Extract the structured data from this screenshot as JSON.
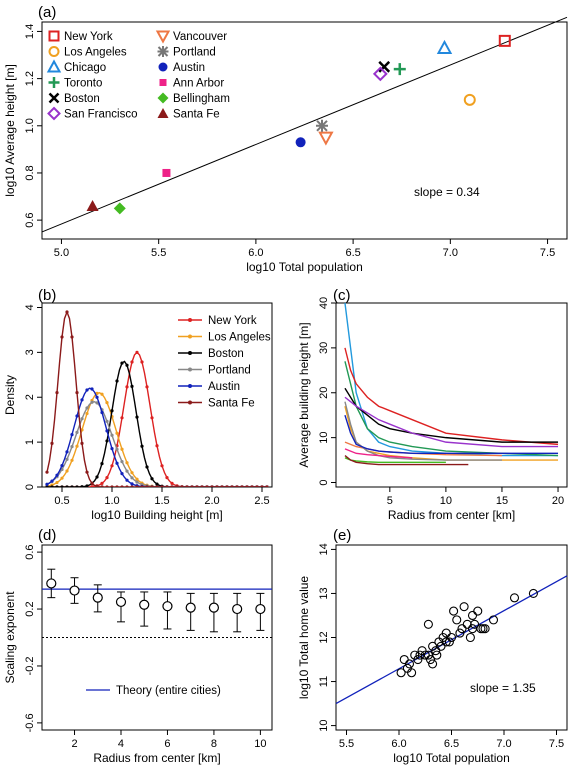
{
  "chart_data": [
    {
      "panel": "(a)",
      "type": "scatter",
      "xlabel": "log10 Total population",
      "ylabel": "log10 Average height [m]",
      "xlim": [
        4.9,
        7.6
      ],
      "ylim": [
        0.52,
        1.44
      ],
      "xticks": [
        "5.0",
        "5.5",
        "6.0",
        "6.5",
        "7.0",
        "7.5"
      ],
      "yticks": [
        "0.6",
        "0.8",
        "1.0",
        "1.2",
        "1.4"
      ],
      "annotation": "slope = 0.34",
      "fit_line": {
        "x": [
          4.9,
          7.6
        ],
        "y": [
          0.55,
          1.46
        ]
      },
      "legend_placement": "top-left",
      "series": [
        {
          "name": "New York",
          "marker": "square-open",
          "color": "#dd2222",
          "x": 7.28,
          "y": 1.36
        },
        {
          "name": "Los Angeles",
          "marker": "circle-open",
          "color": "#f0a020",
          "x": 7.1,
          "y": 1.11
        },
        {
          "name": "Chicago",
          "marker": "triangle-open",
          "color": "#2288dd",
          "x": 6.97,
          "y": 1.33
        },
        {
          "name": "Toronto",
          "marker": "plus",
          "color": "#229955",
          "x": 6.74,
          "y": 1.24
        },
        {
          "name": "Boston",
          "marker": "cross",
          "color": "#000000",
          "x": 6.66,
          "y": 1.25
        },
        {
          "name": "San Francisco",
          "marker": "diamond-open",
          "color": "#9933cc",
          "x": 6.64,
          "y": 1.22
        },
        {
          "name": "Vancouver",
          "marker": "triangle-down-open",
          "color": "#ee7744",
          "x": 6.36,
          "y": 0.95
        },
        {
          "name": "Portland",
          "marker": "asterisk",
          "color": "#777777",
          "x": 6.34,
          "y": 1.0
        },
        {
          "name": "Austin",
          "marker": "circle-filled",
          "color": "#1122bb",
          "x": 6.23,
          "y": 0.93
        },
        {
          "name": "Ann Arbor",
          "marker": "square-filled",
          "color": "#ee2288",
          "x": 5.54,
          "y": 0.8
        },
        {
          "name": "Bellingham",
          "marker": "diamond-filled",
          "color": "#44bb22",
          "x": 5.3,
          "y": 0.65
        },
        {
          "name": "Santa Fe",
          "marker": "triangle-filled",
          "color": "#8b1a1a",
          "x": 5.16,
          "y": 0.66
        }
      ]
    },
    {
      "panel": "(b)",
      "type": "line",
      "xlabel": "log10 Building height [m]",
      "ylabel": "Density",
      "xlim": [
        0.3,
        2.6
      ],
      "ylim": [
        0,
        4.1
      ],
      "xticks": [
        "0.5",
        "1.0",
        "1.5",
        "2.0",
        "2.5"
      ],
      "yticks": [
        "0",
        "1",
        "2",
        "3",
        "4"
      ],
      "legend_placement": "top-right",
      "series": [
        {
          "name": "New York",
          "color": "#dd2222",
          "mu": 1.25,
          "sigma": 0.13,
          "peak": 3.0
        },
        {
          "name": "Los Angeles",
          "color": "#f0a020",
          "mu": 0.87,
          "sigma": 0.17,
          "peak": 2.1
        },
        {
          "name": "Boston",
          "color": "#000000",
          "mu": 1.12,
          "sigma": 0.12,
          "peak": 2.8
        },
        {
          "name": "Portland",
          "color": "#888888",
          "mu": 0.82,
          "sigma": 0.18,
          "peak": 1.9
        },
        {
          "name": "Austin",
          "color": "#1122bb",
          "mu": 0.78,
          "sigma": 0.16,
          "peak": 2.2
        },
        {
          "name": "Santa Fe",
          "color": "#8b1a1a",
          "mu": 0.55,
          "sigma": 0.09,
          "peak": 3.9
        }
      ]
    },
    {
      "panel": "(c)",
      "type": "line",
      "xlabel": "Radius from center [km]",
      "ylabel": "Average building height [m]",
      "xlim": [
        0.2,
        20.8
      ],
      "ylim": [
        -1,
        40
      ],
      "xticks": [
        "5",
        "10",
        "15",
        "20"
      ],
      "yticks": [
        "0",
        "10",
        "20",
        "30",
        "40"
      ],
      "series": [
        {
          "color": "#2299dd",
          "x": [
            1,
            1.5,
            2,
            3,
            4,
            5,
            7,
            10,
            15,
            20
          ],
          "y": [
            40,
            30,
            20,
            12,
            9,
            8,
            7,
            6.5,
            6,
            6
          ]
        },
        {
          "color": "#dd2222",
          "x": [
            1,
            1.5,
            2,
            3,
            4,
            5,
            7,
            10,
            15,
            20
          ],
          "y": [
            30,
            25,
            22,
            19,
            17,
            16,
            14,
            11,
            9.5,
            8.5
          ]
        },
        {
          "color": "#229955",
          "x": [
            1,
            1.5,
            2,
            3,
            4,
            5,
            7,
            10,
            15,
            20
          ],
          "y": [
            27,
            22,
            17,
            12,
            10,
            9,
            8,
            7,
            6.5,
            6
          ]
        },
        {
          "color": "#000000",
          "x": [
            1,
            1.5,
            2,
            3,
            4,
            5,
            7,
            10,
            15,
            20
          ],
          "y": [
            21,
            19,
            17,
            15,
            13,
            12,
            11,
            10,
            9,
            9
          ]
        },
        {
          "color": "#9933cc",
          "x": [
            1,
            1.5,
            2,
            3,
            4,
            5,
            7,
            10,
            15,
            20
          ],
          "y": [
            19,
            18,
            17,
            15.5,
            14,
            13,
            11,
            9,
            8,
            8
          ]
        },
        {
          "color": "#f0a020",
          "x": [
            1,
            1.5,
            2,
            3,
            4,
            5,
            7,
            10,
            15,
            20
          ],
          "y": [
            17,
            12,
            9,
            7,
            6.5,
            6,
            5.5,
            5,
            5,
            5
          ]
        },
        {
          "color": "#ee7744",
          "x": [
            1,
            1.5,
            2,
            3,
            4,
            5,
            7,
            10,
            15
          ],
          "y": [
            9,
            8.5,
            8,
            7.5,
            7,
            6.8,
            6.5,
            6.2,
            6
          ]
        },
        {
          "color": "#888888",
          "x": [
            1,
            1.5,
            2,
            3,
            4,
            5,
            7,
            10,
            15
          ],
          "y": [
            18,
            13,
            9,
            7,
            6,
            5.5,
            5.2,
            5,
            5
          ]
        },
        {
          "color": "#1122bb",
          "x": [
            1,
            1.5,
            2,
            3,
            4,
            5,
            7,
            10,
            15,
            20
          ],
          "y": [
            15,
            11,
            8.5,
            7.5,
            7,
            6.8,
            6.5,
            6.5,
            6.5,
            6.5
          ]
        },
        {
          "color": "#ee2288",
          "x": [
            1,
            1.5,
            2,
            3,
            4,
            5,
            7
          ],
          "y": [
            7.5,
            7,
            6.5,
            6.2,
            6,
            5.8,
            5.5
          ]
        },
        {
          "color": "#44bb22",
          "x": [
            1,
            1.5,
            2,
            3,
            4,
            5,
            7,
            10
          ],
          "y": [
            5.5,
            5,
            4.8,
            4.6,
            4.5,
            4.5,
            4.5,
            4.5
          ]
        },
        {
          "color": "#8b1a1a",
          "x": [
            1,
            1.5,
            2,
            3,
            4,
            5,
            7,
            10,
            12
          ],
          "y": [
            6,
            5,
            4.5,
            4.2,
            4,
            4,
            4,
            4,
            4
          ]
        }
      ]
    },
    {
      "panel": "(d)",
      "type": "scatter",
      "xlabel": "Radius from center [km]",
      "ylabel": "Scaling exponent",
      "xlim": [
        0.6,
        10.5
      ],
      "ylim": [
        -0.65,
        0.65
      ],
      "xticks": [
        "2",
        "4",
        "6",
        "8",
        "10"
      ],
      "yticks": [
        "-0.6",
        "-0.2",
        "0.2",
        "0.6"
      ],
      "theory_value": 0.34,
      "dotted_line": 0,
      "legend": "Theory (entire cities)",
      "x": [
        1,
        2,
        3,
        4,
        5,
        6,
        7,
        8,
        9,
        10
      ],
      "y": [
        0.38,
        0.33,
        0.28,
        0.25,
        0.23,
        0.22,
        0.21,
        0.21,
        0.2,
        0.2
      ],
      "err_low": [
        0.28,
        0.24,
        0.18,
        0.11,
        0.08,
        0.06,
        0.05,
        0.04,
        0.04,
        0.05
      ],
      "err_high": [
        0.48,
        0.42,
        0.37,
        0.32,
        0.32,
        0.32,
        0.31,
        0.31,
        0.31,
        0.31
      ]
    },
    {
      "panel": "(e)",
      "type": "scatter",
      "xlabel": "log10 Total population",
      "ylabel": "log10 Total home value",
      "xlim": [
        5.4,
        7.6
      ],
      "ylim": [
        9.9,
        14.1
      ],
      "xticks": [
        "5.5",
        "6.0",
        "6.5",
        "7.0",
        "7.5"
      ],
      "yticks": [
        "10",
        "11",
        "12",
        "13",
        "14"
      ],
      "annotation": "slope = 1.35",
      "fit_line": {
        "x": [
          5.4,
          7.6
        ],
        "y": [
          10.5,
          13.4
        ]
      },
      "x": [
        6.02,
        6.05,
        6.08,
        6.1,
        6.12,
        6.15,
        6.18,
        6.2,
        6.22,
        6.25,
        6.28,
        6.3,
        6.32,
        6.35,
        6.38,
        6.4,
        6.42,
        6.45,
        6.48,
        6.5,
        6.52,
        6.55,
        6.58,
        6.6,
        6.62,
        6.65,
        6.68,
        6.7,
        6.72,
        6.75,
        6.78,
        6.8,
        6.82,
        6.9,
        7.1,
        7.28,
        6.28,
        6.36,
        6.45,
        6.7,
        6.32
      ],
      "y": [
        11.2,
        11.5,
        11.3,
        11.4,
        11.2,
        11.6,
        11.5,
        11.6,
        11.7,
        11.6,
        12.3,
        11.5,
        11.8,
        11.7,
        11.9,
        11.8,
        12.0,
        12.1,
        11.9,
        12.0,
        12.6,
        12.4,
        12.1,
        12.2,
        12.7,
        12.3,
        12.0,
        12.5,
        12.3,
        12.6,
        12.2,
        12.2,
        12.2,
        12.4,
        12.9,
        13.0,
        11.6,
        11.6,
        11.9,
        12.2,
        11.4
      ]
    }
  ],
  "panels": {
    "a": "(a)",
    "b": "(b)",
    "c": "(c)",
    "d": "(d)",
    "e": "(e)"
  }
}
